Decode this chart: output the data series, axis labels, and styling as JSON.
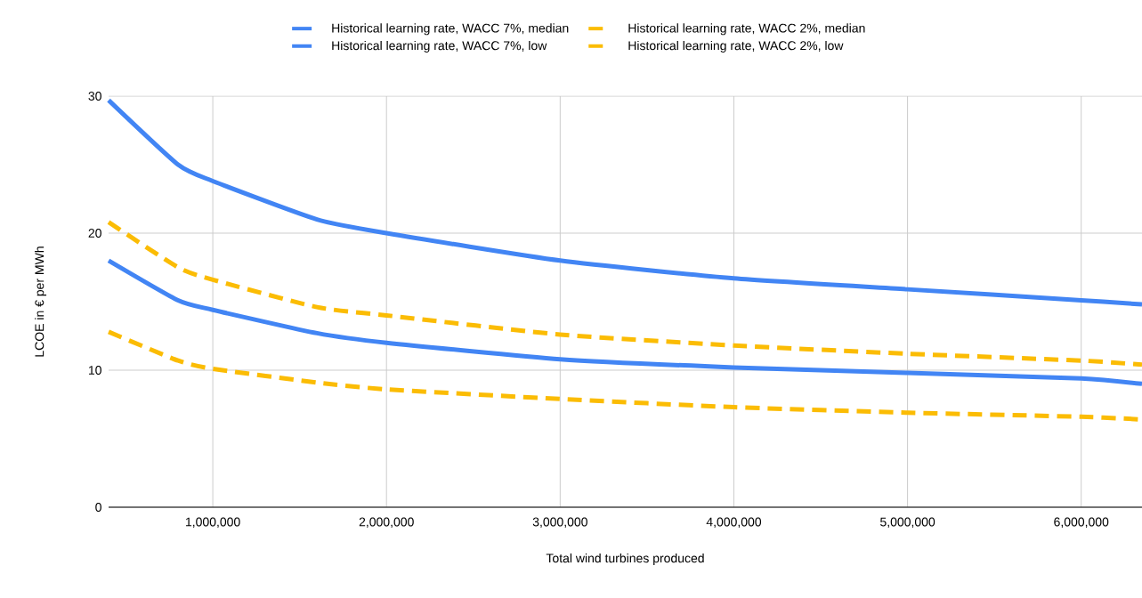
{
  "chart_data": {
    "type": "line",
    "xlabel": "Total wind turbines produced",
    "ylabel": "LCOE in € per MWh",
    "x": [
      400000,
      800000,
      1000000,
      1600000,
      2000000,
      3000000,
      4000000,
      5000000,
      6000000,
      6350000
    ],
    "series": [
      {
        "name": "Historical learning rate, WACC 7%, median",
        "color": "#4285f4",
        "line_style": "solid",
        "values": [
          29.7,
          25.0,
          23.8,
          21.0,
          20.0,
          18.0,
          16.7,
          15.9,
          15.1,
          14.8
        ]
      },
      {
        "name": "Historical learning rate, WACC 2%, median",
        "color": "#fbbc04",
        "line_style": "dashed",
        "values": [
          20.8,
          17.5,
          16.6,
          14.6,
          14.0,
          12.6,
          11.8,
          11.2,
          10.7,
          10.4
        ]
      },
      {
        "name": "Historical learning rate, WACC 7%, low",
        "color": "#4285f4",
        "line_style": "solid",
        "values": [
          18.0,
          15.1,
          14.4,
          12.7,
          12.0,
          10.8,
          10.2,
          9.8,
          9.4,
          9.0
        ]
      },
      {
        "name": "Historical learning rate, WACC 2%, low",
        "color": "#fbbc04",
        "line_style": "dashed",
        "values": [
          12.8,
          10.7,
          10.1,
          9.1,
          8.6,
          7.9,
          7.3,
          6.9,
          6.6,
          6.4
        ]
      }
    ],
    "xlim": [
      400000,
      6350000
    ],
    "ylim": [
      0,
      30
    ],
    "xticks": [
      {
        "value": 1000000,
        "label": "1,000,000"
      },
      {
        "value": 2000000,
        "label": "2,000,000"
      },
      {
        "value": 3000000,
        "label": "3,000,000"
      },
      {
        "value": 4000000,
        "label": "4,000,000"
      },
      {
        "value": 5000000,
        "label": "5,000,000"
      },
      {
        "value": 6000000,
        "label": "6,000,000"
      }
    ],
    "yticks": [
      0,
      10,
      20,
      30
    ],
    "grid": true,
    "legend": "top",
    "marker": "none"
  }
}
